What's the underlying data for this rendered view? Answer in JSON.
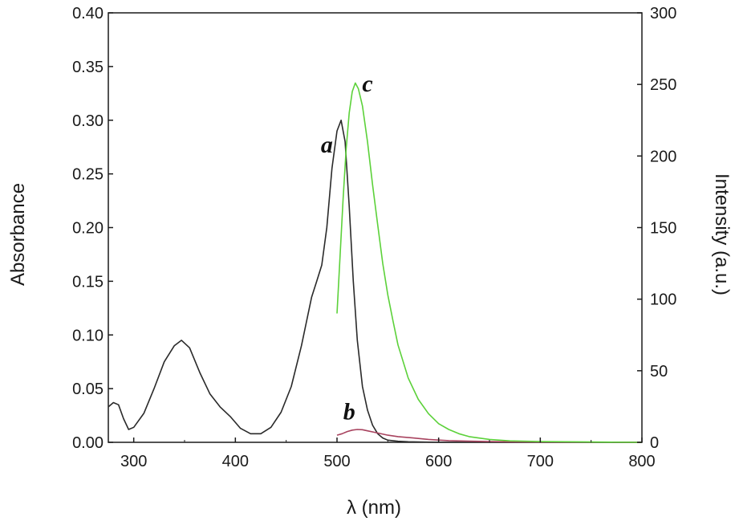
{
  "chart_data": {
    "type": "line",
    "xlabel": "λ (nm)",
    "ylabel_left": "Absorbance",
    "ylabel_right": "Intensity (a.u.)",
    "xlim": [
      275,
      800
    ],
    "ylim_left": [
      0,
      0.4
    ],
    "ylim_right": [
      0,
      300
    ],
    "x_ticks": [
      "300",
      "400",
      "500",
      "600",
      "700",
      "800"
    ],
    "y_left_ticks": [
      "0.00",
      "0.05",
      "0.10",
      "0.15",
      "0.20",
      "0.25",
      "0.30",
      "0.35",
      "0.40"
    ],
    "y_right_ticks": [
      "0",
      "50",
      "100",
      "150",
      "200",
      "250",
      "300"
    ],
    "grid": false,
    "series": [
      {
        "name": "a",
        "axis": "left",
        "color": "#2a2a2a",
        "x": [
          275,
          280,
          285,
          290,
          295,
          300,
          310,
          320,
          330,
          340,
          347,
          355,
          365,
          375,
          385,
          395,
          405,
          415,
          425,
          435,
          445,
          455,
          465,
          475,
          480,
          485,
          490,
          495,
          500,
          504,
          508,
          512,
          516,
          520,
          525,
          530,
          535,
          540,
          545,
          550,
          560,
          570,
          600,
          650,
          700,
          800
        ],
        "y": [
          0.033,
          0.037,
          0.035,
          0.022,
          0.012,
          0.014,
          0.027,
          0.05,
          0.075,
          0.09,
          0.095,
          0.088,
          0.065,
          0.045,
          0.033,
          0.024,
          0.013,
          0.008,
          0.008,
          0.014,
          0.028,
          0.052,
          0.09,
          0.135,
          0.15,
          0.165,
          0.2,
          0.255,
          0.29,
          0.3,
          0.28,
          0.22,
          0.15,
          0.095,
          0.052,
          0.03,
          0.016,
          0.008,
          0.004,
          0.002,
          0.001,
          0.0005,
          0.0,
          0.0,
          0.0,
          0.0
        ]
      },
      {
        "name": "b",
        "axis": "right",
        "color": "#a8435f",
        "x": [
          500,
          505,
          510,
          515,
          520,
          525,
          530,
          540,
          550,
          560,
          575,
          590,
          610,
          630,
          650,
          700,
          800
        ],
        "y": [
          5,
          6,
          7.5,
          8.5,
          9,
          8.8,
          8,
          6.5,
          5,
          4,
          3,
          2,
          1.2,
          0.8,
          0.5,
          0.2,
          0
        ]
      },
      {
        "name": "c",
        "axis": "right",
        "color": "#5cd13a",
        "x": [
          500,
          503,
          506,
          509,
          512,
          515,
          518,
          521,
          525,
          530,
          535,
          540,
          545,
          550,
          555,
          560,
          570,
          580,
          590,
          600,
          610,
          620,
          630,
          650,
          670,
          700,
          750,
          800
        ],
        "y": [
          90,
          130,
          170,
          205,
          230,
          245,
          251,
          247,
          235,
          210,
          180,
          152,
          125,
          103,
          85,
          68,
          45,
          30,
          20,
          13,
          9,
          6,
          4,
          2,
          1,
          0.5,
          0.2,
          0
        ]
      }
    ],
    "annotations": [
      {
        "text": "a",
        "x": 490,
        "y_left": 0.27
      },
      {
        "text": "b",
        "x": 512,
        "y_right": 16
      },
      {
        "text": "c",
        "x": 530,
        "y_right": 245
      }
    ]
  }
}
